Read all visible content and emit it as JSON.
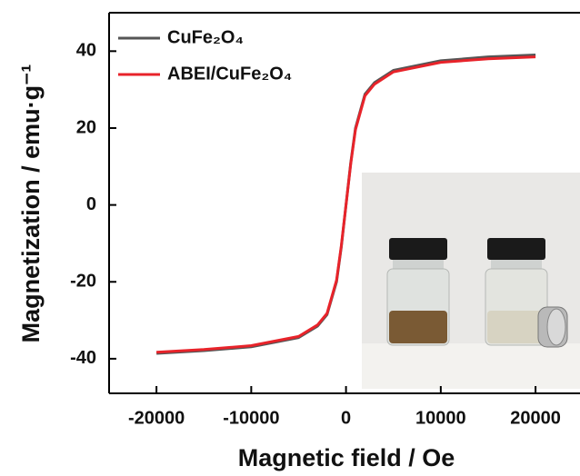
{
  "chart_data": {
    "type": "line",
    "x_label": "Magnetic field / Oe",
    "y_label": "Magnetization / emu·g⁻¹",
    "x": [
      -20000,
      -15000,
      -10000,
      -5000,
      -3000,
      -2000,
      -1000,
      -500,
      0,
      500,
      1000,
      2000,
      3000,
      5000,
      10000,
      15000,
      20000
    ],
    "series": [
      {
        "name": "CuFe₂O₄",
        "color": "#555555",
        "values": [
          -38.6,
          -37.9,
          -36.9,
          -34.5,
          -31.5,
          -28.5,
          -20,
          -11,
          0,
          11,
          20,
          28.8,
          31.8,
          35,
          37.5,
          38.5,
          39
        ]
      },
      {
        "name": "ABEI/CuFe₂O₄",
        "color": "#e8232a",
        "values": [
          -38.3,
          -37.6,
          -36.6,
          -34.2,
          -31.2,
          -28.2,
          -19.6,
          -10.7,
          0,
          10.7,
          19.6,
          28.4,
          31.4,
          34.6,
          37.1,
          38,
          38.5
        ]
      }
    ],
    "xlim": [
      -25000,
      24500
    ],
    "ylim": [
      -49,
      50
    ],
    "xticks": [
      -20000,
      -10000,
      0,
      10000,
      20000
    ],
    "yticks": [
      -40,
      -20,
      0,
      20,
      40
    ]
  }
}
